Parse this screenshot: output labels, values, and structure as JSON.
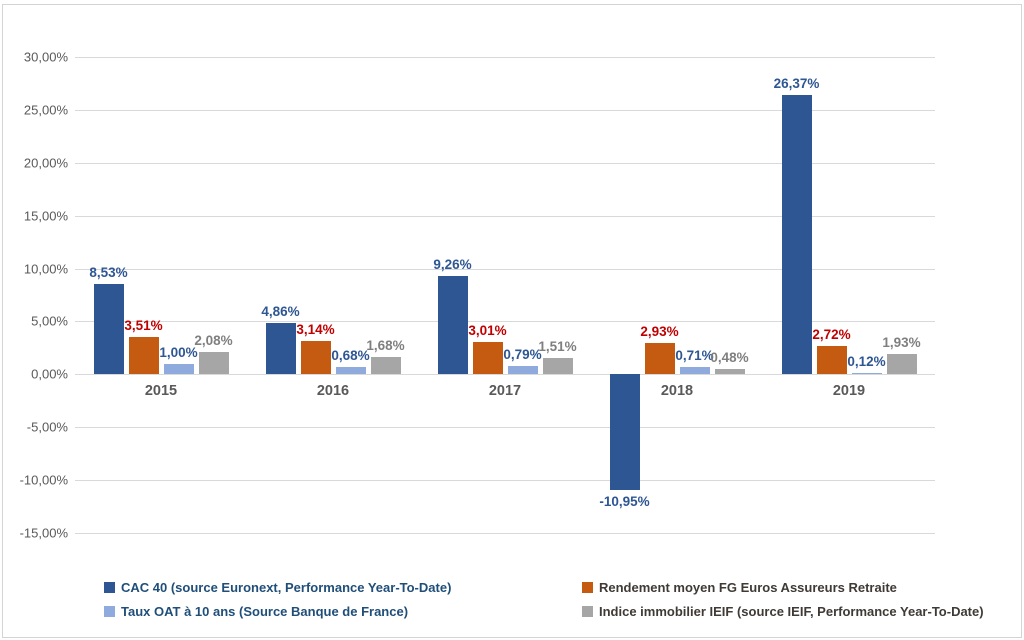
{
  "chart_data": {
    "type": "bar",
    "title": "",
    "categories": [
      "2015",
      "2016",
      "2017",
      "2018",
      "2019"
    ],
    "series": [
      {
        "id": "cac40",
        "name": "CAC 40 (source Euronext, Performance Year-To-Date)",
        "color": "#2E5693",
        "label_color": "#2E5693",
        "values": [
          8.53,
          4.86,
          9.26,
          -10.95,
          26.37
        ],
        "labels": [
          "8,53%",
          "4,86%",
          "9,26%",
          "-10,95%",
          "26,37%"
        ]
      },
      {
        "id": "fg-euros",
        "name": "Rendement moyen FG Euros Assureurs Retraite",
        "color": "#C55A11",
        "label_color": "#C00000",
        "values": [
          3.51,
          3.14,
          3.01,
          2.93,
          2.72
        ],
        "labels": [
          "3,51%",
          "3,14%",
          "3,01%",
          "2,93%",
          "2,72%"
        ]
      },
      {
        "id": "taux-oat-10-ans",
        "name": "Taux OAT à 10 ans (Source Banque de France)",
        "color": "#8FAADC",
        "label_color": "#2E5693",
        "values": [
          1.0,
          0.68,
          0.79,
          0.71,
          0.12
        ],
        "labels": [
          "1,00%",
          "0,68%",
          "0,79%",
          "0,71%",
          "0,12%"
        ]
      },
      {
        "id": "indice-ieif",
        "name": "Indice immobilier IEIF (source IEIF, Performance Year-To-Date)",
        "color": "#A6A6A6",
        "label_color": "#7F7F7F",
        "values": [
          2.08,
          1.68,
          1.51,
          0.48,
          1.93
        ],
        "labels": [
          "2,08%",
          "1,68%",
          "1,51%",
          "0,48%",
          "1,93%"
        ]
      }
    ],
    "y_axis": {
      "min": -15,
      "max": 30,
      "step": 5,
      "tick_labels": [
        "30,00%",
        "25,00%",
        "20,00%",
        "15,00%",
        "10,00%",
        "5,00%",
        "0,00%",
        "-5,00%",
        "-10,00%",
        "-15,00%"
      ]
    },
    "grid": true,
    "legend_position": "bottom",
    "xlabel": "",
    "ylabel": ""
  },
  "legend": {
    "items": [
      {
        "label": "CAC 40 (source Euronext, Performance Year-To-Date)",
        "swatch_color": "#2E5693",
        "text_color": "#1F4E79"
      },
      {
        "label": "Rendement moyen FG Euros Assureurs Retraite",
        "swatch_color": "#C55A11",
        "text_color": "#3F3A35"
      },
      {
        "label": "Taux OAT à 10 ans (Source Banque de France)",
        "swatch_color": "#8FAADC",
        "text_color": "#1F4E79"
      },
      {
        "label": "Indice immobilier IEIF (source IEIF, Performance Year-To-Date)",
        "swatch_color": "#A6A6A6",
        "text_color": "#3F3A35"
      }
    ]
  },
  "colors": {
    "gridline": "#D9D9D9",
    "axis_text": "#595959",
    "frame_border": "#D4D4D4"
  }
}
